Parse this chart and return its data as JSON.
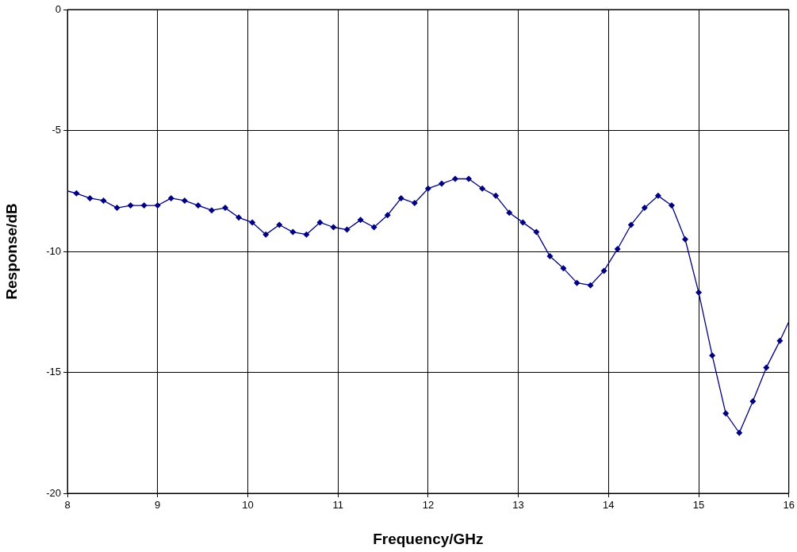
{
  "chart_data": {
    "type": "line",
    "xlabel": "Frequency/GHz",
    "ylabel": "Response/dB",
    "x": [
      8,
      8.1,
      8.25,
      8.4,
      8.55,
      8.7,
      8.85,
      9.0,
      9.15,
      9.3,
      9.45,
      9.6,
      9.75,
      9.9,
      10.05,
      10.2,
      10.35,
      10.5,
      10.65,
      10.8,
      10.95,
      11.1,
      11.25,
      11.4,
      11.55,
      11.7,
      11.85,
      12.0,
      12.15,
      12.3,
      12.45,
      12.6,
      12.75,
      12.9,
      13.05,
      13.2,
      13.35,
      13.5,
      13.65,
      13.8,
      13.95,
      14.1,
      14.25,
      14.4,
      14.55,
      14.7,
      14.85,
      15.0,
      15.15,
      15.3,
      15.45,
      15.6,
      15.75,
      15.9,
      16
    ],
    "series": [
      {
        "color": "#000080",
        "values": [
          -7.5,
          -7.6,
          -7.8,
          -7.9,
          -8.2,
          -8.1,
          -8.1,
          -8.1,
          -7.8,
          -7.9,
          -8.1,
          -8.3,
          -8.2,
          -8.6,
          -8.8,
          -9.3,
          -8.9,
          -9.2,
          -9.3,
          -8.8,
          -9.0,
          -9.1,
          -8.7,
          -9.0,
          -8.5,
          -7.8,
          -8.0,
          -7.4,
          -7.2,
          -7.0,
          -7.0,
          -7.4,
          -7.7,
          -8.4,
          -8.8,
          -9.2,
          -10.2,
          -10.7,
          -11.3,
          -11.4,
          -10.8,
          -9.9,
          -8.9,
          -8.2,
          -7.7,
          -8.1,
          -9.5,
          -11.7,
          -14.3,
          -16.7,
          -17.5,
          -16.2,
          -14.8,
          -13.7,
          -12.9
        ]
      }
    ],
    "xlim": [
      8,
      16
    ],
    "xticks": [
      8,
      9,
      10,
      11,
      12,
      13,
      14,
      15,
      16
    ],
    "ylim": [
      -20,
      0
    ],
    "yticks": [
      -20,
      -15,
      -10,
      -5,
      0
    ],
    "grid": true,
    "legend": false,
    "marker": "diamond",
    "line_style": "solid"
  }
}
